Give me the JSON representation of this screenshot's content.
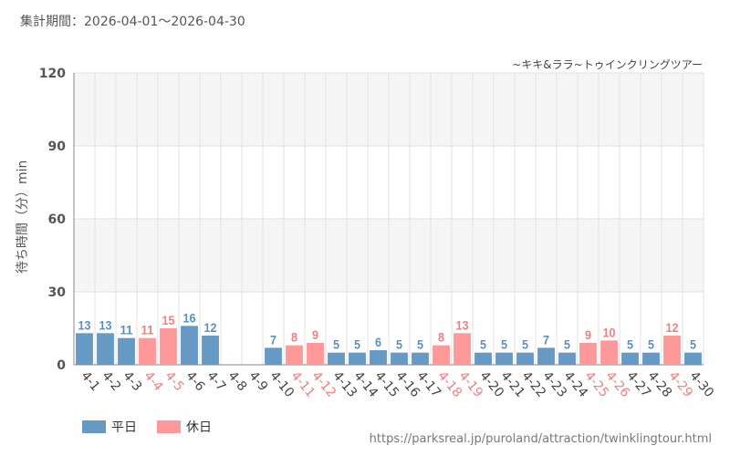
{
  "header": {
    "period_label": "集計期間：",
    "period_start": "2026-04-01",
    "period_sep": "～",
    "period_end": "2026-04-30"
  },
  "attraction_name": "~キキ&ララ~トゥインクリングツアー",
  "footer": {
    "source_url": "https://parksreal.jp/puroland/attraction/twinklingtour.html"
  },
  "legend": [
    {
      "label": "平日",
      "color": "#6699c4"
    },
    {
      "label": "休日",
      "color": "#ff9999"
    }
  ],
  "colors": {
    "weekday_bar": "#6699c4",
    "holiday_bar": "#ff9999",
    "weekday_text": "#5b8fc0",
    "holiday_text": "#f07f7f",
    "band": "#f5f5f5",
    "grid": "#e2e2e2"
  },
  "chart_data": {
    "type": "bar",
    "ylabel": "待ち時間（分）min",
    "ylim": [
      0,
      120
    ],
    "yticks": [
      0,
      30,
      60,
      90,
      120
    ],
    "grid": true,
    "legend_position": "bottom-left",
    "categories": [
      "4-1",
      "4-2",
      "4-3",
      "4-4",
      "4-5",
      "4-6",
      "4-7",
      "4-8",
      "4-9",
      "4-10",
      "4-11",
      "4-12",
      "4-13",
      "4-14",
      "4-15",
      "4-16",
      "4-17",
      "4-18",
      "4-19",
      "4-20",
      "4-21",
      "4-22",
      "4-23",
      "4-24",
      "4-25",
      "4-26",
      "4-27",
      "4-28",
      "4-29",
      "4-30"
    ],
    "day_type": [
      "平日",
      "平日",
      "平日",
      "休日",
      "休日",
      "平日",
      "平日",
      "平日",
      "平日",
      "平日",
      "休日",
      "休日",
      "平日",
      "平日",
      "平日",
      "平日",
      "平日",
      "休日",
      "休日",
      "平日",
      "平日",
      "平日",
      "平日",
      "平日",
      "休日",
      "休日",
      "平日",
      "平日",
      "休日",
      "平日"
    ],
    "values": [
      13,
      13,
      11,
      11,
      15,
      16,
      12,
      null,
      null,
      7,
      8,
      9,
      5,
      5,
      6,
      5,
      5,
      8,
      13,
      5,
      5,
      5,
      7,
      5,
      9,
      10,
      5,
      5,
      12,
      5
    ]
  }
}
